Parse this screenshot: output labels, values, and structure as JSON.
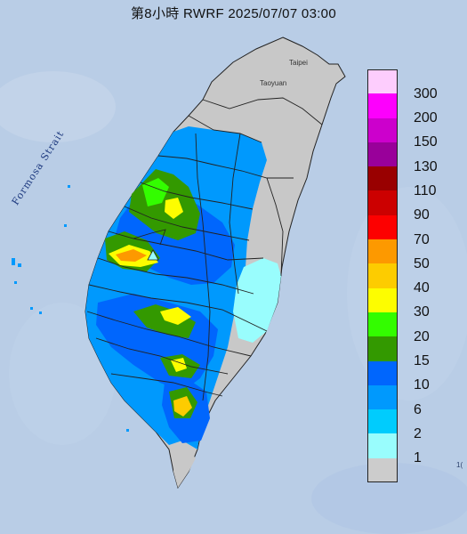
{
  "title": "第8小時  RWRF 2025/07/07 03:00",
  "map": {
    "strait_label": "Formosa Strait",
    "city_labels": {
      "taipei": "Taipei",
      "taoyuan": "Taoyuan"
    },
    "edge_text": "1("
  },
  "legend": {
    "labels": [
      "300",
      "200",
      "150",
      "130",
      "110",
      "90",
      "70",
      "50",
      "40",
      "30",
      "20",
      "15",
      "10",
      "6",
      "2",
      "1"
    ],
    "colors": [
      "#fdcdfd",
      "#fd00fd",
      "#cc00cc",
      "#99009a",
      "#990000",
      "#cc0000",
      "#fd0000",
      "#fd9900",
      "#fdcc00",
      "#fdfd00",
      "#33fd00",
      "#339900",
      "#0066fd",
      "#0099fd",
      "#00ccfd",
      "#99fdfd",
      "#cccccc"
    ]
  },
  "colors": {
    "sea": "#b9cde6",
    "land_dry": "#c8c8c8",
    "county_line": "#222222"
  },
  "marker": {
    "icon": "triangle-marker-icon"
  }
}
